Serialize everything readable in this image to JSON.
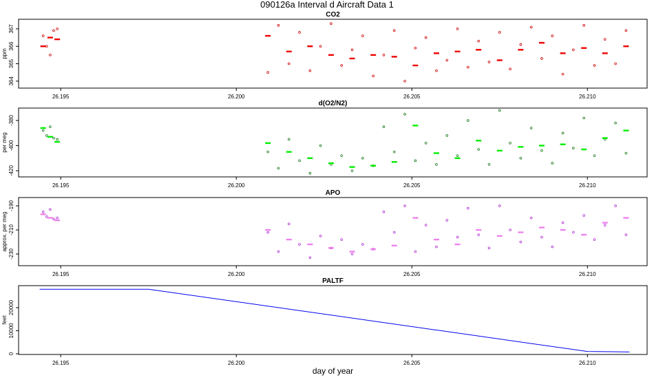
{
  "title": "090126a   Interval d Aircraft Data 1",
  "chart_data": [
    {
      "type": "scatter",
      "title": "CO2",
      "ylabel": "ppm",
      "xlim": [
        26.1938,
        26.2117
      ],
      "ylim": [
        363.6,
        367.55
      ],
      "xticks": [
        26.195,
        {
          "value": 26.2,
          "label": "26.200"
        },
        26.205,
        {
          "value": 26.21,
          "label": "26.210"
        }
      ],
      "yticks": [
        364,
        365,
        366,
        367
      ],
      "series": [
        {
          "color": "#cc0000",
          "marker": "circle",
          "x": [
            26.1945,
            26.1946,
            26.1947,
            26.1948,
            26.1949,
            26.2009,
            26.2012,
            26.2015,
            26.2018,
            26.2021,
            26.2024,
            26.2027,
            26.203,
            26.2033,
            26.2036,
            26.2039,
            26.2042,
            26.2045,
            26.2048,
            26.2051,
            26.2054,
            26.2057,
            26.206,
            26.2063,
            26.2066,
            26.2069,
            26.2072,
            26.2075,
            26.2078,
            26.2081,
            26.2084,
            26.2087,
            26.209,
            26.2093,
            26.2096,
            26.2099,
            26.2102,
            26.2105,
            26.2108,
            26.2111
          ],
          "values": [
            366.6,
            366.0,
            365.5,
            366.9,
            367.0,
            364.5,
            367.2,
            365.0,
            366.8,
            364.6,
            366.0,
            367.3,
            364.9,
            365.8,
            366.6,
            364.3,
            365.5,
            366.9,
            364.0,
            365.9,
            366.5,
            364.6,
            365.2,
            367.0,
            364.8,
            366.3,
            365.1,
            366.8,
            364.7,
            366.1,
            367.1,
            365.3,
            366.6,
            364.4,
            365.8,
            367.2,
            364.9,
            366.4,
            365.0,
            366.9
          ]
        },
        {
          "color": "#ee0000",
          "marker": "dash",
          "x": [
            26.1945,
            26.1947,
            26.1949,
            26.2009,
            26.2015,
            26.2021,
            26.2027,
            26.2033,
            26.2039,
            26.2045,
            26.2051,
            26.2057,
            26.2063,
            26.2069,
            26.2075,
            26.2081,
            26.2087,
            26.2093,
            26.2099,
            26.2105,
            26.2111
          ],
          "values": [
            366.0,
            366.5,
            366.4,
            366.6,
            365.7,
            366.0,
            365.5,
            365.3,
            365.5,
            365.4,
            364.9,
            365.6,
            365.7,
            365.8,
            365.2,
            365.8,
            366.2,
            365.6,
            365.9,
            365.6,
            366.0
          ]
        }
      ]
    },
    {
      "type": "scatter",
      "title": "d(O2/N2)",
      "ylabel": "per meg",
      "xlim": [
        26.1938,
        26.2117
      ],
      "ylim": [
        -424.9,
        -370.1
      ],
      "xticks": [
        26.195,
        {
          "value": 26.2,
          "label": "26.200"
        },
        26.205,
        {
          "value": 26.21,
          "label": "26.210"
        }
      ],
      "yticks": [
        -420,
        -400,
        -380
      ],
      "series": [
        {
          "color": "#1a7a1a",
          "marker": "circle",
          "x": [
            26.1945,
            26.1946,
            26.1947,
            26.1948,
            26.1949,
            26.2009,
            26.2012,
            26.2015,
            26.2018,
            26.2021,
            26.2024,
            26.2027,
            26.203,
            26.2033,
            26.2036,
            26.2039,
            26.2042,
            26.2045,
            26.2048,
            26.2051,
            26.2054,
            26.2057,
            26.206,
            26.2063,
            26.2066,
            26.2069,
            26.2072,
            26.2075,
            26.2078,
            26.2081,
            26.2084,
            26.2087,
            26.209,
            26.2093,
            26.2096,
            26.2099,
            26.2102,
            26.2105,
            26.2108,
            26.2111
          ],
          "values": [
            -388,
            -392,
            -385,
            -394,
            -395,
            -405,
            -418,
            -395,
            -412,
            -422,
            -400,
            -415,
            -408,
            -420,
            -410,
            -416,
            -385,
            -405,
            -375,
            -412,
            -398,
            -415,
            -392,
            -408,
            -380,
            -403,
            -415,
            -372,
            -398,
            -410,
            -386,
            -404,
            -414,
            -390,
            -402,
            -378,
            -408,
            -395,
            -382,
            -406
          ]
        },
        {
          "color": "#00ee00",
          "marker": "dash",
          "x": [
            26.1945,
            26.1947,
            26.1949,
            26.2009,
            26.2015,
            26.2021,
            26.2027,
            26.2033,
            26.2039,
            26.2045,
            26.2051,
            26.2057,
            26.2063,
            26.2069,
            26.2075,
            26.2081,
            26.2087,
            26.2093,
            26.2099,
            26.2105,
            26.2111
          ],
          "values": [
            -386,
            -393,
            -397,
            -398,
            -405,
            -410,
            -414,
            -417,
            -416,
            -413,
            -384,
            -406,
            -410,
            -396,
            -404,
            -401,
            -400,
            -399,
            -403,
            -394,
            -388
          ]
        }
      ]
    },
    {
      "type": "scatter",
      "title": "APO",
      "ylabel": "approx. per meg",
      "xlim": [
        26.1938,
        26.2117
      ],
      "ylim": [
        -239.7,
        -183.1
      ],
      "xticks": [
        26.195,
        {
          "value": 26.2,
          "label": "26.200"
        },
        26.205,
        {
          "value": 26.21,
          "label": "26.210"
        }
      ],
      "yticks": [
        -230,
        -210,
        -190
      ],
      "series": [
        {
          "color": "#b030d0",
          "marker": "circle",
          "x": [
            26.1945,
            26.1946,
            26.1947,
            26.1948,
            26.1949,
            26.2009,
            26.2012,
            26.2015,
            26.2018,
            26.2021,
            26.2024,
            26.2027,
            26.203,
            26.2033,
            26.2036,
            26.2039,
            26.2042,
            26.2045,
            26.2048,
            26.2051,
            26.2054,
            26.2057,
            26.206,
            26.2063,
            26.2066,
            26.2069,
            26.2072,
            26.2075,
            26.2078,
            26.2081,
            26.2084,
            26.2087,
            26.209,
            26.2093,
            26.2096,
            26.2099,
            26.2102,
            26.2105,
            26.2108,
            26.2111
          ],
          "values": [
            -195,
            -199,
            -193,
            -201,
            -200,
            -212,
            -228,
            -205,
            -222,
            -233,
            -215,
            -225,
            -218,
            -230,
            -222,
            -226,
            -195,
            -212,
            -190,
            -228,
            -206,
            -224,
            -202,
            -216,
            -192,
            -214,
            -225,
            -190,
            -210,
            -220,
            -200,
            -216,
            -224,
            -204,
            -212,
            -198,
            -218,
            -206,
            -190,
            -214
          ]
        },
        {
          "color": "#ee82ee",
          "marker": "dash",
          "x": [
            26.1945,
            26.1947,
            26.1949,
            26.2009,
            26.2015,
            26.2021,
            26.2027,
            26.2033,
            26.2039,
            26.2045,
            26.2051,
            26.2057,
            26.2063,
            26.2069,
            26.2075,
            26.2081,
            26.2087,
            26.2093,
            26.2099,
            26.2105,
            26.2111
          ],
          "values": [
            -197,
            -200,
            -202,
            -210,
            -218,
            -222,
            -225,
            -228,
            -226,
            -223,
            -200,
            -218,
            -222,
            -210,
            -215,
            -212,
            -208,
            -210,
            -214,
            -204,
            -200
          ]
        }
      ]
    },
    {
      "type": "line",
      "title": "PALTF",
      "ylabel": "feet",
      "xlabel": "day of year",
      "xlim": [
        26.1938,
        26.2117
      ],
      "ylim": [
        -300,
        29550
      ],
      "xticks": [
        26.195,
        {
          "value": 26.2,
          "label": "26.200"
        },
        26.205,
        {
          "value": 26.21,
          "label": "26.210"
        }
      ],
      "yticks": [
        0,
        10000,
        20000
      ],
      "series": [
        {
          "color": "#0000ee",
          "x": [
            26.1944,
            26.1975,
            26.21,
            26.2112
          ],
          "values": [
            28000,
            28000,
            1000,
            800
          ]
        }
      ]
    }
  ]
}
